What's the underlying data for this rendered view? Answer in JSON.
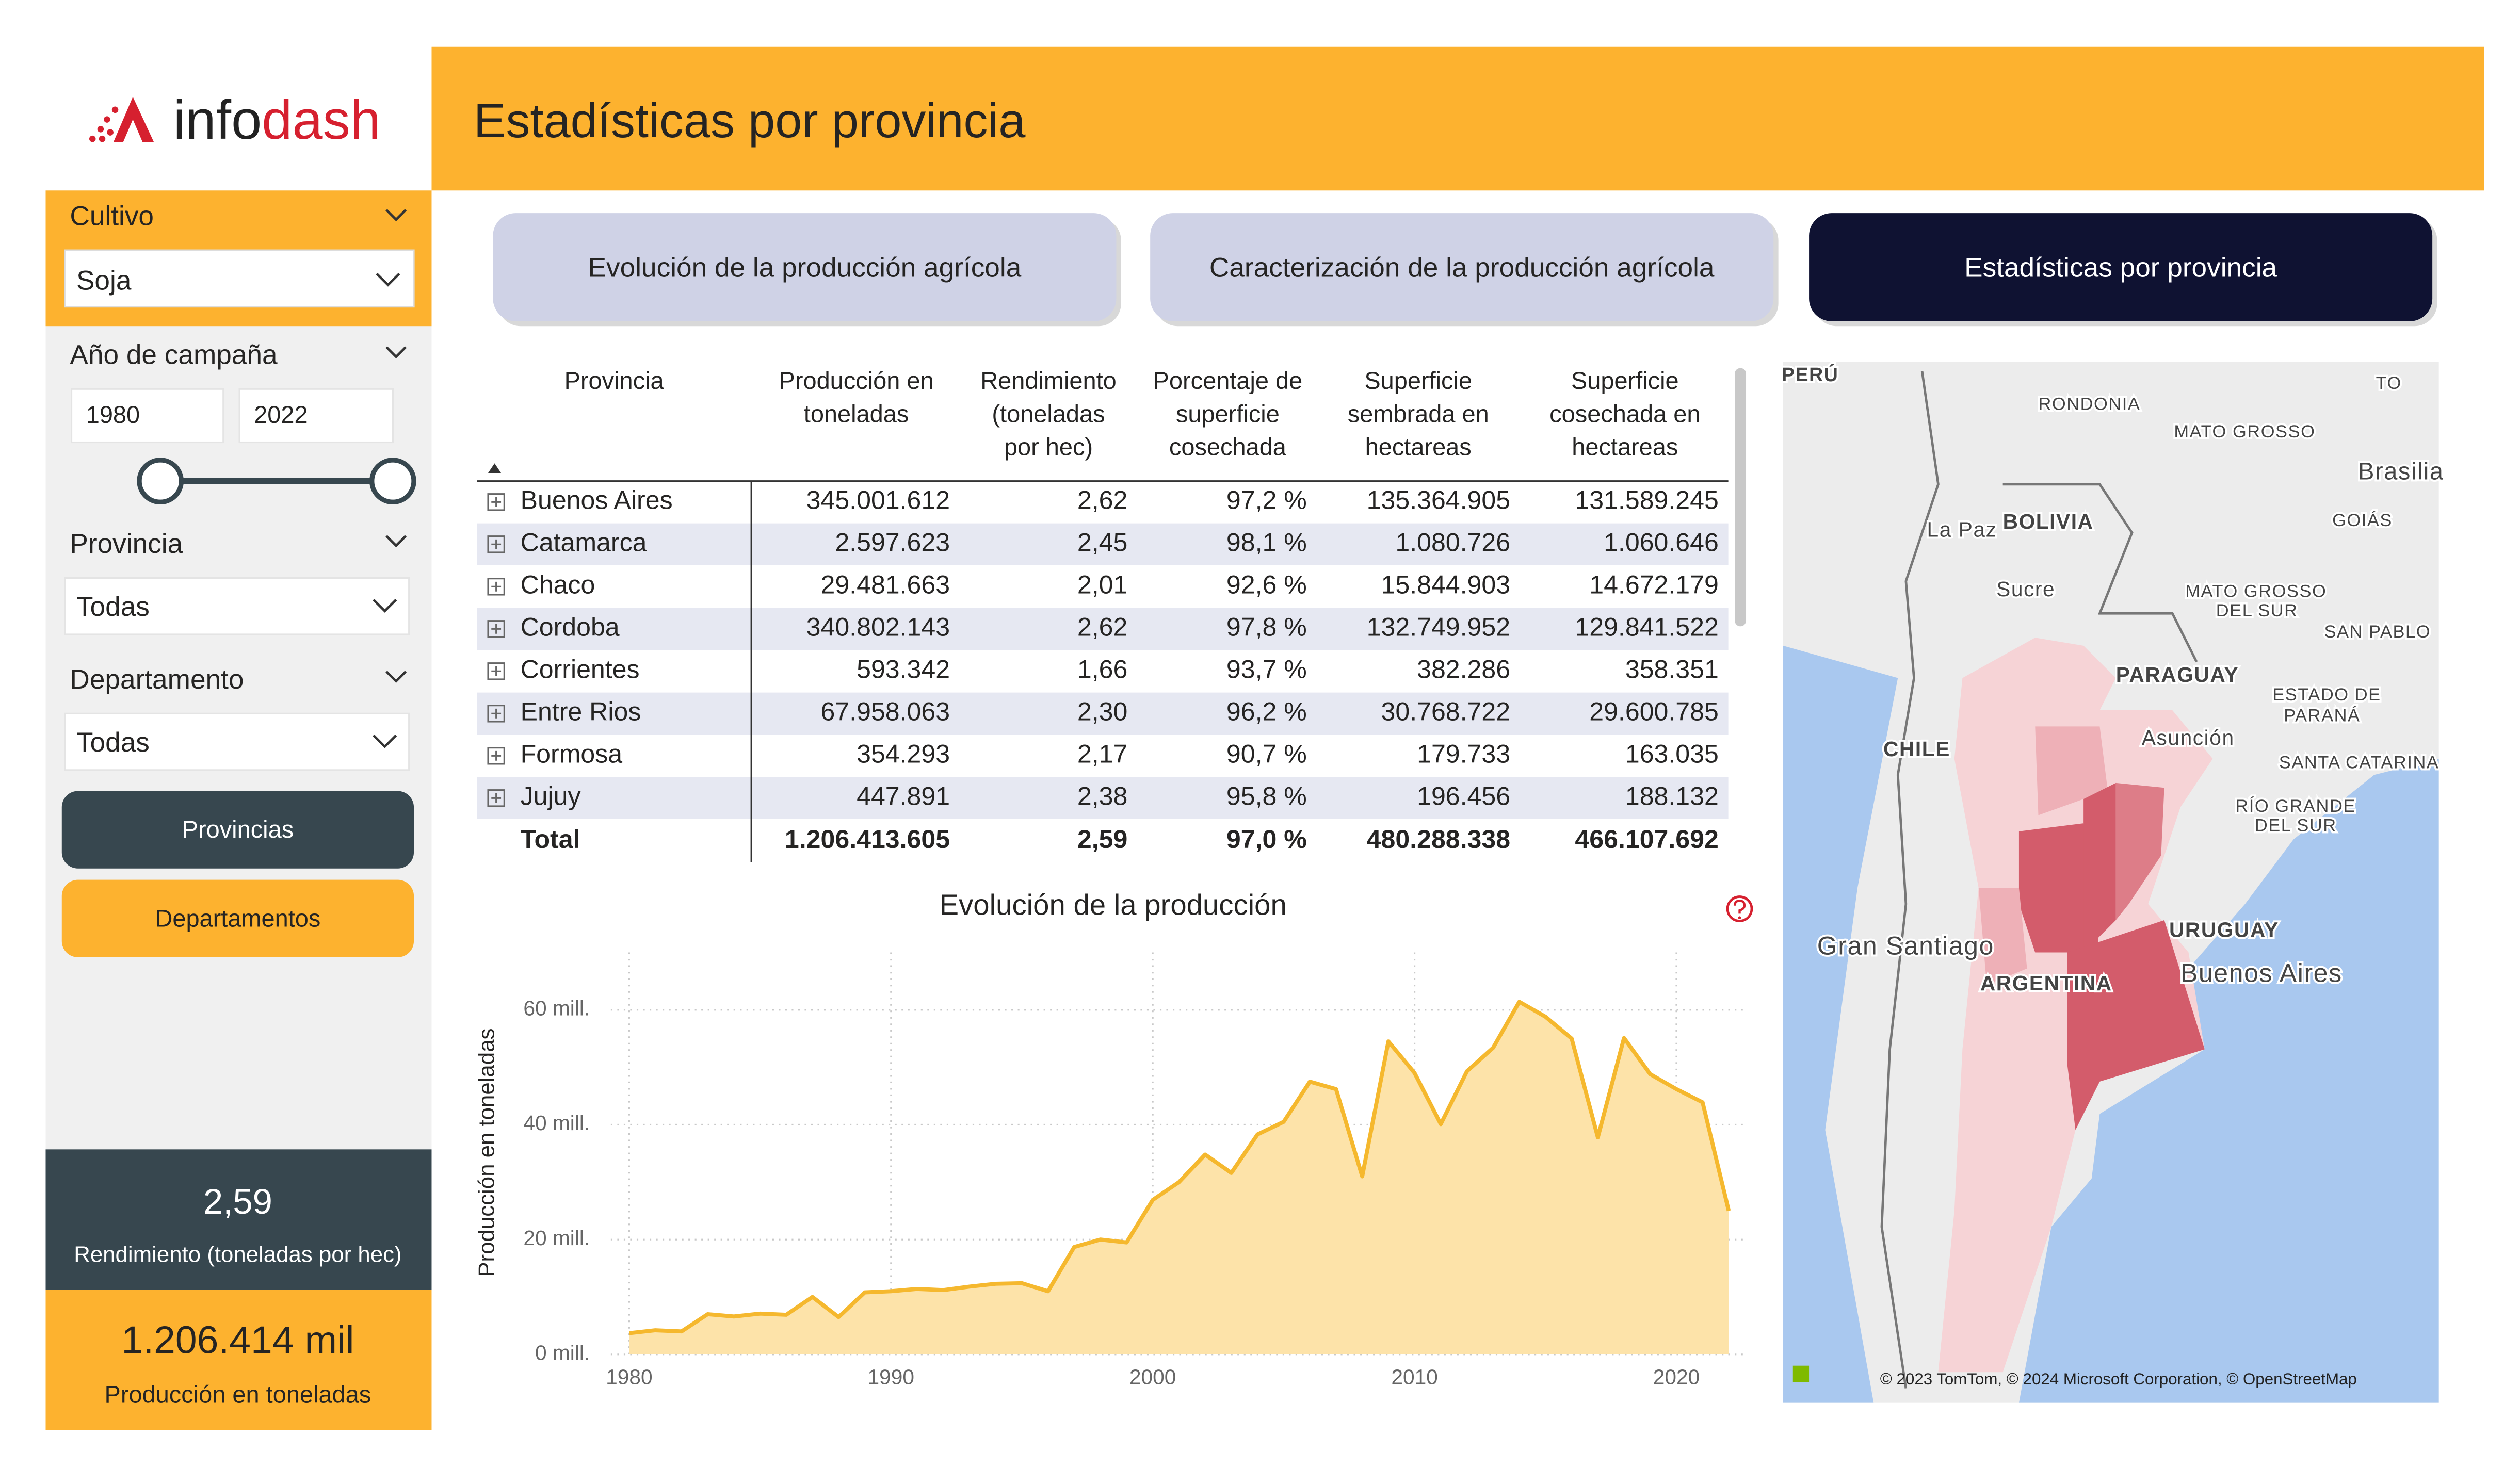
{
  "logo": {
    "part1": "info",
    "part2": "dash"
  },
  "header": {
    "title": "Estadísticas por provincia"
  },
  "filters": {
    "cultivo": {
      "label": "Cultivo",
      "value": "Soja"
    },
    "anio": {
      "label": "Año de campaña",
      "from": "1980",
      "to": "2022"
    },
    "provincia": {
      "label": "Provincia",
      "value": "Todas"
    },
    "departamento": {
      "label": "Departamento",
      "value": "Todas"
    }
  },
  "buttons": [
    "Provincias",
    "Departamentos"
  ],
  "kpis": [
    {
      "value": "2,59",
      "label": "Rendimiento (toneladas por hec)"
    },
    {
      "value": "1.206.414 mil",
      "label": "Producción en toneladas"
    }
  ],
  "tabs": [
    "Evolución de la producción agrícola",
    "Caracterización de la producción agrícola",
    "Estadísticas por provincia"
  ],
  "table": {
    "columns": [
      [
        "Provincia"
      ],
      [
        "Producción en",
        "toneladas"
      ],
      [
        "Rendimiento",
        "(toneladas",
        "por hec)"
      ],
      [
        "Porcentaje de",
        "superficie",
        "cosechada"
      ],
      [
        "Superficie",
        "sembrada en",
        "hectareas"
      ],
      [
        "Superficie",
        "cosechada en",
        "hectareas"
      ]
    ],
    "rows": [
      [
        "Buenos Aires",
        "345.001.612",
        "2,62",
        "97,2 %",
        "135.364.905",
        "131.589.245"
      ],
      [
        "Catamarca",
        "2.597.623",
        "2,45",
        "98,1 %",
        "1.080.726",
        "1.060.646"
      ],
      [
        "Chaco",
        "29.481.663",
        "2,01",
        "92,6 %",
        "15.844.903",
        "14.672.179"
      ],
      [
        "Cordoba",
        "340.802.143",
        "2,62",
        "97,8 %",
        "132.749.952",
        "129.841.522"
      ],
      [
        "Corrientes",
        "593.342",
        "1,66",
        "93,7 %",
        "382.286",
        "358.351"
      ],
      [
        "Entre Rios",
        "67.958.063",
        "2,30",
        "96,2 %",
        "30.768.722",
        "29.600.785"
      ],
      [
        "Formosa",
        "354.293",
        "2,17",
        "90,7 %",
        "179.733",
        "163.035"
      ],
      [
        "Jujuy",
        "447.891",
        "2,38",
        "95,8 %",
        "196.456",
        "188.132"
      ]
    ],
    "total": [
      "Total",
      "1.206.413.605",
      "2,59",
      "97,0 %",
      "480.288.338",
      "466.107.692"
    ]
  },
  "chart_data": {
    "type": "area",
    "title": "Evolución de la producción",
    "y_label": "Producción en toneladas",
    "color": "#f5b82e",
    "fill_color": "#fde3a9",
    "x": [
      1980,
      1981,
      1982,
      1983,
      1984,
      1985,
      1986,
      1987,
      1988,
      1989,
      1990,
      1991,
      1992,
      1993,
      1994,
      1995,
      1996,
      1997,
      1998,
      1999,
      2000,
      2001,
      2002,
      2003,
      2004,
      2005,
      2006,
      2007,
      2008,
      2009,
      2010,
      2011,
      2012,
      2013,
      2014,
      2015,
      2016,
      2017,
      2018,
      2019,
      2020,
      2021,
      2022
    ],
    "values": [
      3700000,
      4200000,
      4000000,
      7000000,
      6600000,
      7100000,
      6900000,
      10000000,
      6500000,
      10800000,
      11000000,
      11400000,
      11200000,
      11800000,
      12300000,
      12400000,
      11000000,
      18700000,
      20000000,
      19500000,
      26900000,
      30000000,
      34800000,
      31600000,
      38300000,
      40500000,
      47500000,
      46200000,
      31000000,
      54500000,
      49000000,
      40100000,
      49300000,
      53400000,
      61400000,
      58800000,
      55000000,
      37800000,
      55100000,
      48800000,
      46200000,
      43900000,
      25000000
    ],
    "xlim": [
      1979.3,
      2022.6
    ],
    "xticks": [
      1980,
      1990,
      2000,
      2010,
      2020
    ],
    "ylim": [
      0,
      70000000
    ],
    "yticks": [
      {
        "value": 0,
        "label": "0 mill."
      },
      {
        "value": 20000000,
        "label": "20 mill."
      },
      {
        "value": 40000000,
        "label": "40 mill."
      },
      {
        "value": 60000000,
        "label": "60 mill."
      }
    ],
    "grid": true
  },
  "map": {
    "labels": [
      "PERÚ",
      "TO",
      "RONDONIA",
      "MATO GROSSO",
      "Brasilia",
      "GOIÁS",
      "BOLIVIA",
      "La Paz",
      "Sucre",
      "MATO GROSSO",
      "DEL SUR",
      "SAN PABLO",
      "PARAGUAY",
      "ESTADO DE",
      "PARANÁ",
      "CHILE",
      "Asunción",
      "SANTA CATARINA",
      "RÍO GRANDE",
      "DEL SUR",
      "Gran Santiago",
      "URUGUAY",
      "ARGENTINA",
      "Buenos Aires"
    ],
    "attribution": "© 2023 TomTom, © 2024 Microsoft Corporation, © OpenStreetMap"
  }
}
